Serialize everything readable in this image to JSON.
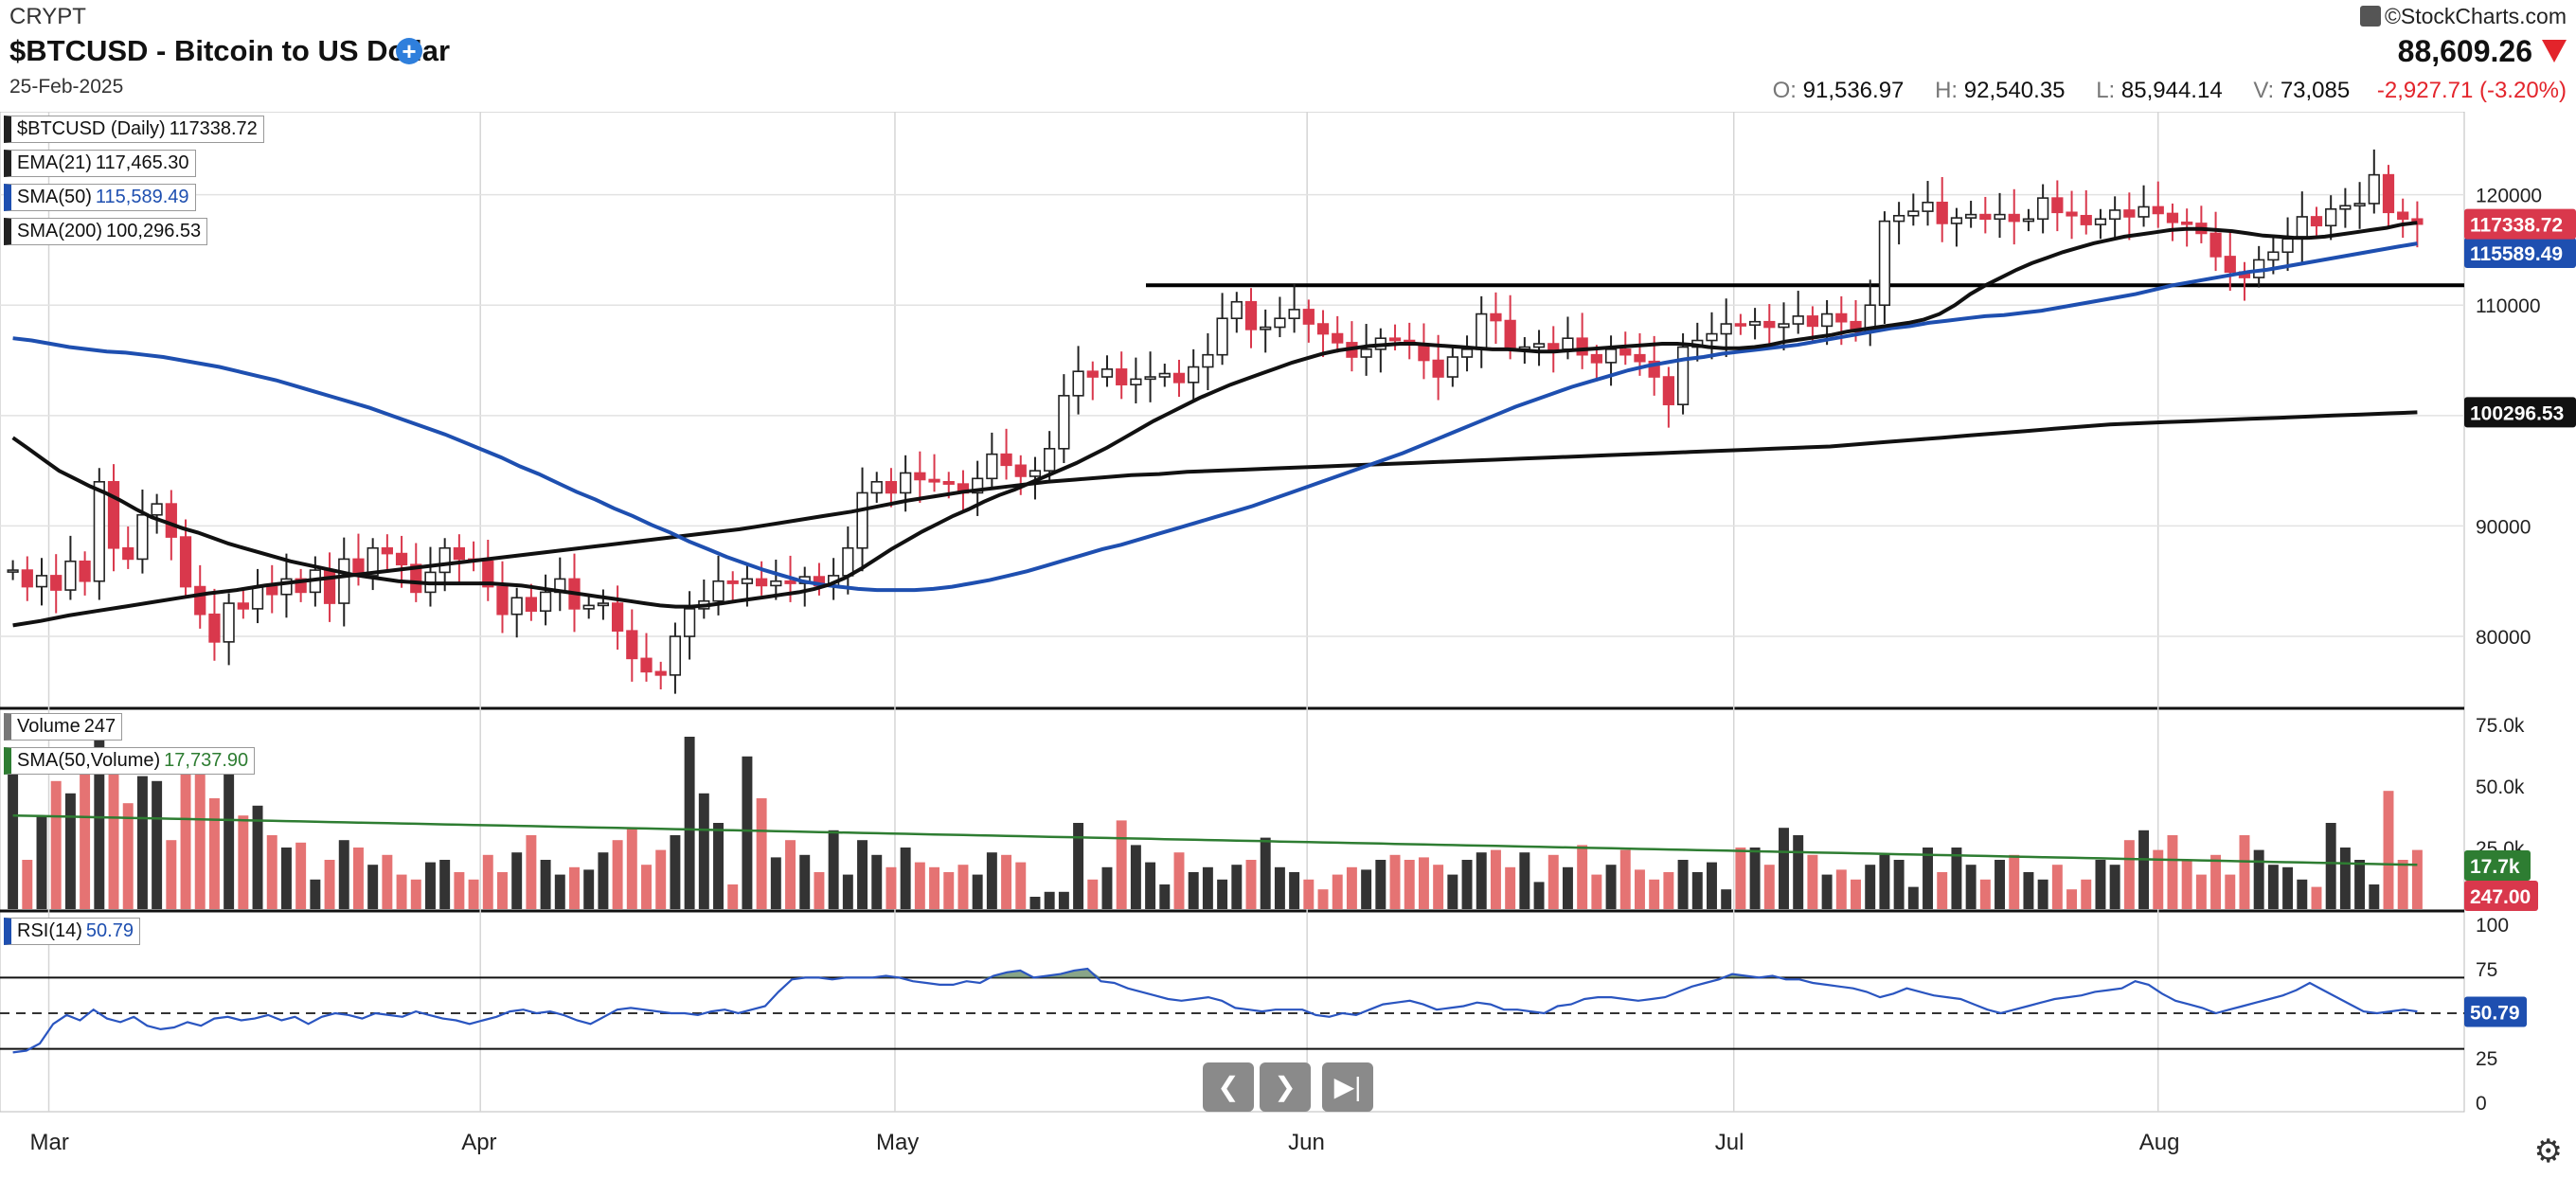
{
  "header": {
    "exchange": "CRYPT",
    "title": "$BTCUSD - Bitcoin to US Dollar",
    "date": "25-Feb-2025",
    "brand": "©StockCharts.com",
    "last_price": "88,609.26",
    "open_label": "O:",
    "open": "91,536.97",
    "high_label": "H:",
    "high": "92,540.35",
    "low_label": "L:",
    "low": "85,944.14",
    "vol_label": "V:",
    "volume": "73,085",
    "change": "-2,927.71 (-3.20%)"
  },
  "legends": {
    "price": {
      "name": "$BTCUSD (Daily)",
      "value": "117338.72"
    },
    "ema21": {
      "name": "EMA(21)",
      "value": "117,465.30"
    },
    "sma50": {
      "name": "SMA(50)",
      "value": "115,589.49"
    },
    "sma200": {
      "name": "SMA(200)",
      "value": "100,296.53"
    },
    "volume": {
      "name": "Volume",
      "value": "247"
    },
    "vol_sma": {
      "name": "SMA(50,Volume)",
      "value": "17,737.90"
    },
    "rsi": {
      "name": "RSI(14)",
      "value": "50.79"
    }
  },
  "colors": {
    "up": "#222222",
    "down": "#d9384c",
    "vol_up": "#333333",
    "vol_down": "#e57373",
    "ema": "#111111",
    "sma50": "#1e4fb0",
    "sma200": "#111111",
    "vol_sma": "#2e7d32",
    "rsi": "#2a55c0",
    "tag_price": "#d9384c",
    "tag_sma50": "#1e4fb0",
    "tag_sma200": "#111111",
    "tag_volsma": "#2e7d32",
    "tag_vol": "#d9384c",
    "tag_rsi": "#1e4fb0"
  },
  "nav": {
    "prev_icon": "chevron-left-icon",
    "next_icon": "chevron-right-icon",
    "end_icon": "skip-to-end-icon",
    "settings_icon": "gear-icon"
  },
  "chart_data": {
    "type": "candlestick",
    "x_ticks": [
      "Mar",
      "Apr",
      "May",
      "Jun",
      "Jul",
      "Aug"
    ],
    "price_axis": {
      "ticks": [
        80000,
        90000,
        100000,
        110000,
        120000
      ],
      "ylim": [
        74000,
        127000
      ]
    },
    "tags": {
      "price": "117338.72",
      "sma200": "100296.53",
      "sma50": "115589.49"
    },
    "resistance_level": 111800,
    "closes": [
      86000,
      84500,
      85500,
      84200,
      86800,
      85000,
      94000,
      88000,
      87000,
      91000,
      92000,
      89000,
      84500,
      82000,
      79500,
      83000,
      82500,
      84500,
      83800,
      85200,
      84000,
      86000,
      83000,
      87000,
      85500,
      88000,
      87500,
      86500,
      84000,
      85800,
      88000,
      87000,
      86800,
      84500,
      82000,
      83500,
      82300,
      84000,
      85200,
      82500,
      82800,
      83000,
      80500,
      78000,
      76800,
      76500,
      80000,
      82500,
      83200,
      85000,
      84800,
      85200,
      84600,
      85000,
      84800,
      85400,
      84600,
      85500,
      88000,
      93000,
      94000,
      93000,
      94800,
      94200,
      94000,
      93800,
      93000,
      94300,
      96500,
      95500,
      94500,
      95000,
      97000,
      101800,
      104000,
      103500,
      104200,
      102800,
      103300,
      103500,
      103800,
      103000,
      104400,
      105500,
      108800,
      110300,
      107800,
      108000,
      108800,
      109600,
      108300,
      107400,
      106600,
      105300,
      106000,
      107000,
      106800,
      106400,
      105000,
      103500,
      105300,
      106000,
      109200,
      108600,
      106000,
      106200,
      106500,
      106000,
      107000,
      105500,
      104800,
      106000,
      105500,
      104900,
      103500,
      101000,
      106200,
      106800,
      107400,
      108300,
      108200,
      108500,
      108000,
      108300,
      109000,
      108100,
      109200,
      108500,
      107600,
      110000,
      117600,
      118100,
      118500,
      119300,
      117400,
      117900,
      118200,
      117800,
      118200,
      117600,
      117800,
      119700,
      118400,
      118100,
      117300,
      117800,
      118600,
      118000,
      118900,
      118300,
      117500,
      117400,
      116500,
      114400,
      113000,
      112500,
      114100,
      114800,
      116000,
      118000,
      117200,
      118700,
      119000,
      119200,
      121800,
      118400,
      117800,
      117338
    ],
    "ema21": [
      98000,
      97000,
      96000,
      95000,
      94300,
      93600,
      93000,
      92300,
      91500,
      90800,
      90300,
      89800,
      89400,
      88900,
      88400,
      88000,
      87600,
      87200,
      86800,
      86500,
      86200,
      85900,
      85600,
      85400,
      85200,
      85000,
      84900,
      84800,
      84800,
      84800,
      84800,
      84800,
      84700,
      84600,
      84400,
      84200,
      84000,
      83800,
      83600,
      83400,
      83200,
      83000,
      82800,
      82700,
      82700,
      82800,
      83000,
      83200,
      83400,
      83600,
      83800,
      84000,
      84300,
      84700,
      85300,
      86100,
      87000,
      87900,
      88700,
      89500,
      90200,
      90900,
      91500,
      92200,
      92800,
      93300,
      93900,
      94500,
      95100,
      95700,
      96400,
      97100,
      97900,
      98700,
      99500,
      100200,
      100900,
      101600,
      102200,
      102800,
      103300,
      103800,
      104300,
      104800,
      105200,
      105600,
      105900,
      106100,
      106300,
      106400,
      106500,
      106500,
      106400,
      106300,
      106200,
      106100,
      106000,
      106000,
      105900,
      105800,
      105800,
      105900,
      106000,
      106100,
      106200,
      106300,
      106400,
      106500,
      106500,
      106400,
      106200,
      106100,
      106100,
      106200,
      106400,
      106700,
      106900,
      107100,
      107300,
      107600,
      107800,
      108000,
      108200,
      108400,
      108700,
      109200,
      110000,
      111000,
      111800,
      112500,
      113200,
      113800,
      114300,
      114800,
      115200,
      115600,
      115900,
      116200,
      116400,
      116600,
      116800,
      116900,
      116900,
      116800,
      116700,
      116500,
      116300,
      116200,
      116100,
      116100,
      116200,
      116400,
      116600,
      116800,
      117000,
      117300,
      117465
    ],
    "sma50": [
      107000,
      106800,
      106500,
      106200,
      106000,
      105800,
      105700,
      105500,
      105300,
      105000,
      104700,
      104400,
      104000,
      103600,
      103200,
      102700,
      102200,
      101700,
      101200,
      100700,
      100100,
      99500,
      98900,
      98300,
      97600,
      96900,
      96200,
      95400,
      94700,
      93900,
      93100,
      92400,
      91600,
      90900,
      90100,
      89400,
      88600,
      87900,
      87200,
      86600,
      86000,
      85500,
      85000,
      84700,
      84500,
      84300,
      84200,
      84200,
      84200,
      84300,
      84500,
      84800,
      85100,
      85500,
      85900,
      86400,
      86900,
      87400,
      87900,
      88300,
      88800,
      89300,
      89800,
      90300,
      90800,
      91300,
      91800,
      92400,
      93000,
      93600,
      94200,
      94800,
      95400,
      96000,
      96600,
      97300,
      98000,
      98700,
      99400,
      100100,
      100800,
      101400,
      102000,
      102600,
      103100,
      103600,
      104100,
      104500,
      104800,
      105100,
      105300,
      105600,
      105800,
      106000,
      106200,
      106400,
      106700,
      107000,
      107300,
      107600,
      107900,
      108100,
      108400,
      108600,
      108800,
      109000,
      109100,
      109300,
      109500,
      109800,
      110100,
      110400,
      110700,
      111000,
      111400,
      111800,
      112100,
      112400,
      112700,
      113000,
      113200,
      113500,
      113800,
      114100,
      114400,
      114700,
      115000,
      115300,
      115589
    ],
    "sma200": [
      81000,
      81400,
      81900,
      82300,
      82700,
      83100,
      83500,
      83900,
      84200,
      84600,
      84900,
      85200,
      85500,
      85800,
      86100,
      86400,
      86700,
      87000,
      87300,
      87600,
      87900,
      88200,
      88500,
      88800,
      89100,
      89400,
      89700,
      90100,
      90500,
      90900,
      91300,
      91800,
      92300,
      92700,
      93100,
      93400,
      93700,
      94000,
      94200,
      94400,
      94600,
      94700,
      94900,
      95000,
      95100,
      95200,
      95300,
      95400,
      95500,
      95600,
      95700,
      95800,
      95900,
      96000,
      96100,
      96200,
      96300,
      96400,
      96500,
      96600,
      96700,
      96800,
      96900,
      97000,
      97100,
      97200,
      97400,
      97600,
      97800,
      98000,
      98200,
      98400,
      98600,
      98800,
      99000,
      99200,
      99300,
      99400,
      99500,
      99600,
      99700,
      99800,
      99900,
      100000,
      100100,
      100200,
      100296
    ],
    "volume": {
      "ticks_labels": [
        "75.0k",
        "50.0k",
        "25.0k"
      ],
      "ticks": [
        75000,
        50000,
        25000
      ],
      "ylim": [
        0,
        80000
      ],
      "sma_value_tag": "17.7k",
      "last_tag": "247.00",
      "values": [
        60000,
        20000,
        38000,
        52000,
        47000,
        60000,
        75000,
        60000,
        43000,
        54000,
        52000,
        28000,
        58000,
        62000,
        45000,
        58000,
        38000,
        42000,
        30000,
        25000,
        27000,
        12000,
        20000,
        28000,
        25000,
        18000,
        22000,
        14000,
        12000,
        19000,
        20000,
        15000,
        12000,
        22000,
        15000,
        23000,
        30000,
        20000,
        14000,
        17000,
        16000,
        23000,
        28000,
        33000,
        18000,
        24000,
        30000,
        70000,
        47000,
        35000,
        10000,
        62000,
        45000,
        21000,
        28000,
        22000,
        15000,
        32000,
        14000,
        28000,
        22000,
        17000,
        25000,
        19000,
        17000,
        15000,
        18000,
        14000,
        23000,
        22000,
        19000,
        5000,
        7000,
        7000,
        35000,
        12000,
        17000,
        36000,
        26000,
        19000,
        10000,
        23000,
        15000,
        17000,
        12000,
        18000,
        20000,
        29000,
        17000,
        15000,
        12000,
        8000,
        14000,
        17000,
        16000,
        20000,
        22000,
        20000,
        21000,
        18000,
        14000,
        20000,
        23000,
        24000,
        17000,
        23000,
        11000,
        22000,
        17000,
        26000,
        14000,
        18000,
        24000,
        16000,
        12000,
        15000,
        20000,
        15000,
        19000,
        8000,
        25000,
        25000,
        18000,
        33000,
        30000,
        22000,
        14000,
        16000,
        12000,
        18000,
        22000,
        20000,
        9000,
        25000,
        15000,
        25000,
        18000,
        12000,
        20000,
        22000,
        15000,
        12000,
        18000,
        8000,
        12000,
        20000,
        18000,
        28000,
        32000,
        24000,
        30000,
        20000,
        14000,
        22000,
        14000,
        30000,
        24000,
        18000,
        17000,
        12000,
        9000,
        35000,
        25000,
        20000,
        10000,
        48000,
        20000,
        24000,
        34000,
        22000,
        20000,
        18000,
        24000,
        12000,
        17000,
        36000,
        24000,
        32000,
        30000,
        9000,
        18000,
        18000,
        20000,
        14000,
        12000,
        8000
      ]
    },
    "rsi": {
      "ticks": [
        100,
        75,
        50,
        25,
        0
      ],
      "overbought": 70,
      "oversold": 30,
      "mid": 50,
      "last_tag": "50.79",
      "values": [
        28,
        29,
        33,
        44,
        49,
        46,
        52,
        47,
        45,
        48,
        43,
        41,
        42,
        45,
        43,
        47,
        48,
        46,
        47,
        49,
        46,
        48,
        44,
        48,
        50,
        49,
        47,
        50,
        49,
        48,
        51,
        49,
        47,
        46,
        44,
        46,
        48,
        51,
        52,
        50,
        51,
        49,
        46,
        44,
        48,
        52,
        53,
        52,
        51,
        50,
        50,
        49,
        51,
        52,
        50,
        52,
        54,
        62,
        69,
        70,
        70,
        69,
        70,
        70,
        70,
        71,
        70,
        68,
        67,
        66,
        66,
        68,
        67,
        71,
        73,
        74,
        70,
        71,
        72,
        74,
        75,
        68,
        67,
        64,
        62,
        60,
        58,
        57,
        58,
        59,
        57,
        53,
        52,
        51,
        52,
        52,
        52,
        49,
        48,
        50,
        49,
        52,
        55,
        56,
        57,
        55,
        52,
        53,
        54,
        56,
        55,
        52,
        52,
        51,
        50,
        54,
        55,
        58,
        59,
        59,
        58,
        57,
        58,
        59,
        62,
        65,
        67,
        69,
        72,
        71,
        70,
        71,
        69,
        69,
        67,
        66,
        65,
        64,
        62,
        59,
        61,
        64,
        62,
        60,
        59,
        58,
        55,
        52,
        50,
        52,
        54,
        56,
        58,
        59,
        60,
        62,
        63,
        64,
        68,
        66,
        61,
        57,
        55,
        53,
        50,
        52,
        54,
        56,
        58,
        60,
        63,
        67,
        63,
        59,
        55,
        51,
        50,
        51,
        52,
        51
      ]
    }
  }
}
